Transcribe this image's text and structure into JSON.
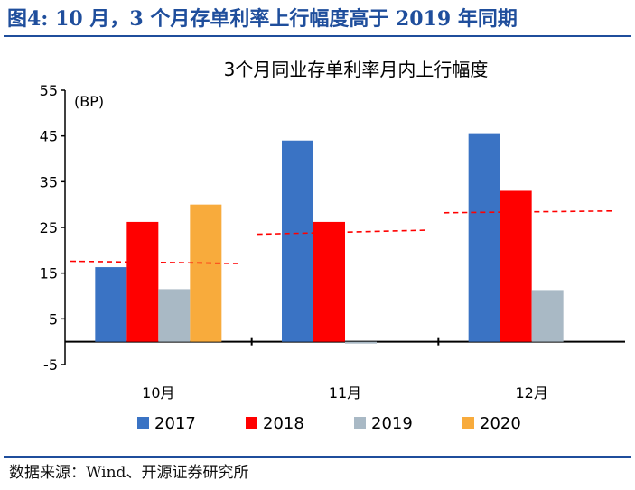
{
  "figure": {
    "title": "图4:  10 月，3 个月存单利率上行幅度高于 2019 年同期",
    "source": "数据来源：Wind、开源证券研究所"
  },
  "chart_data": {
    "type": "bar",
    "title": "3个月同业存单利率月内上行幅度",
    "unit_label": "(BP)",
    "categories": [
      "10月",
      "11月",
      "12月"
    ],
    "series": [
      {
        "name": "2017",
        "color": "#3a73c4",
        "values": [
          16.3,
          44,
          45.6
        ]
      },
      {
        "name": "2018",
        "color": "#ff0000",
        "values": [
          26.2,
          26.2,
          33
        ]
      },
      {
        "name": "2019",
        "color": "#a9b9c5",
        "values": [
          11.5,
          -0.4,
          11.3
        ]
      },
      {
        "name": "2020",
        "color": "#f8ab3c",
        "values": [
          30,
          null,
          null
        ]
      }
    ],
    "reference_lines": [
      {
        "name": "10月均值",
        "color": "#ff0000",
        "style": "dashed",
        "start": 17.6,
        "end": 17.1
      },
      {
        "name": "11月均值",
        "color": "#ff0000",
        "style": "dashed",
        "start": 23.5,
        "end": 24.4
      },
      {
        "name": "12月均值",
        "color": "#ff0000",
        "style": "dashed",
        "start": 28.2,
        "end": 28.6
      }
    ],
    "yticks": [
      "55",
      "45",
      "35",
      "25",
      "15",
      "5",
      "-5"
    ],
    "ylim": [
      -5,
      55
    ],
    "xlabel": "",
    "ylabel": "",
    "legend_position": "bottom"
  }
}
